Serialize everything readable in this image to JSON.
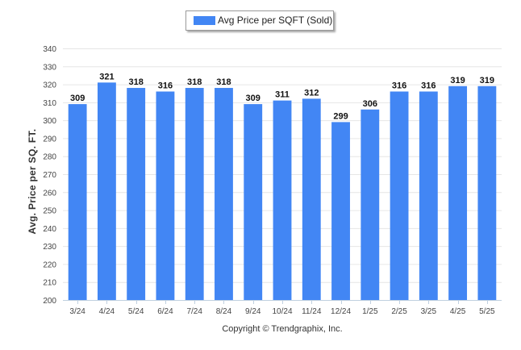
{
  "chart_data": {
    "type": "bar",
    "categories": [
      "3/24",
      "4/24",
      "5/24",
      "6/24",
      "7/24",
      "8/24",
      "9/24",
      "10/24",
      "11/24",
      "12/24",
      "1/25",
      "2/25",
      "3/25",
      "4/25",
      "5/25"
    ],
    "series": [
      {
        "name": "Avg Price per SQFT (Sold)",
        "values": [
          309,
          321,
          318,
          316,
          318,
          318,
          309,
          311,
          312,
          299,
          306,
          316,
          316,
          319,
          319
        ],
        "color": "#4286f4"
      }
    ],
    "ylabel": "Avg. Price per SQ. FT.",
    "xlabel": "",
    "ylim": [
      200,
      340
    ],
    "yticks": [
      200,
      210,
      220,
      230,
      240,
      250,
      260,
      270,
      280,
      290,
      300,
      310,
      320,
      330,
      340
    ],
    "grid": true,
    "legend_position": "top-center",
    "data_labels": true
  },
  "credit": "Copyright © Trendgraphix, Inc."
}
